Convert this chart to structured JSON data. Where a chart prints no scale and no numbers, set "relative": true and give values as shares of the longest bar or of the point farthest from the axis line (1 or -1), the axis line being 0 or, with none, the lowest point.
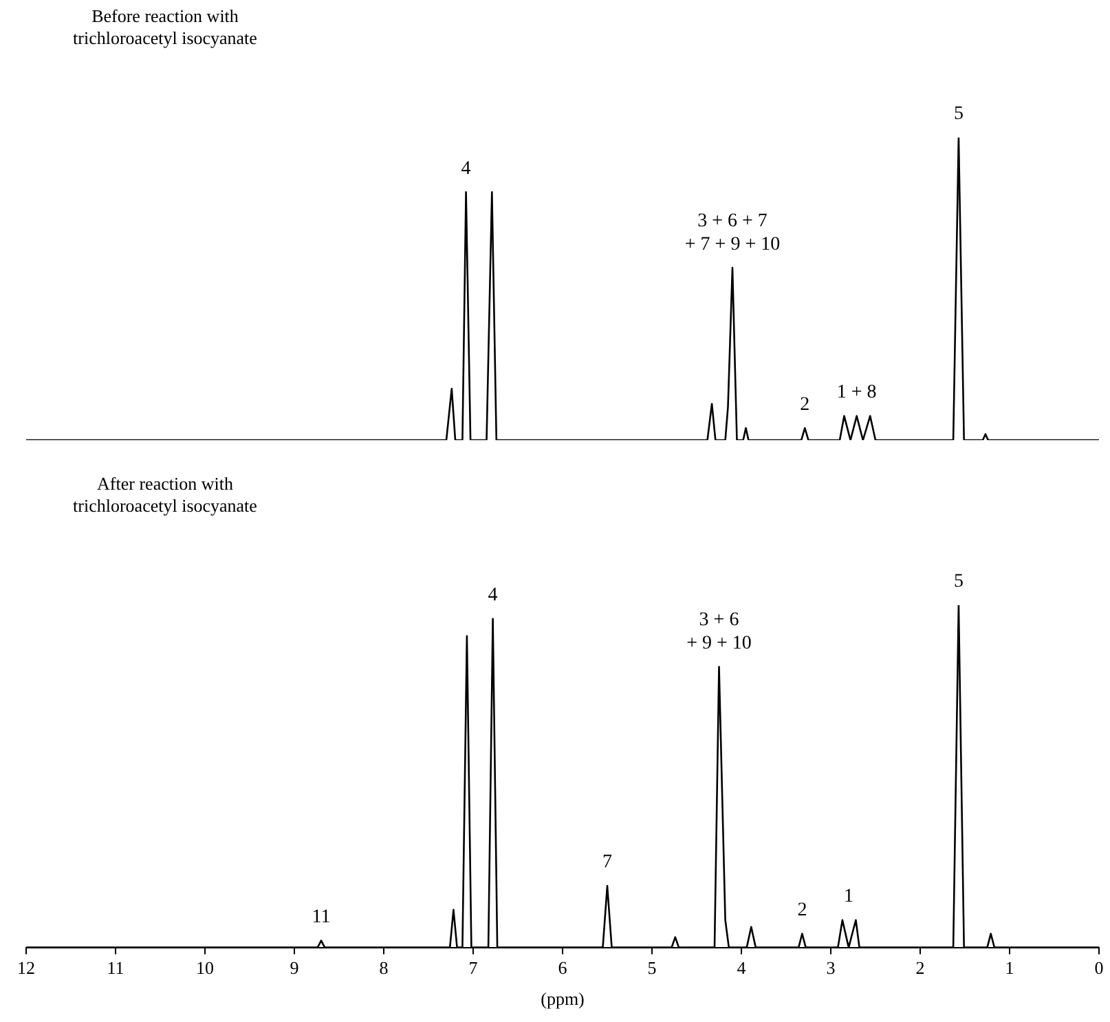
{
  "chart_data": [
    {
      "type": "line",
      "title": "Before reaction with\ntrichloroacetyl isocyanate",
      "relative": true,
      "xlim": [
        12,
        0
      ],
      "tick_labels": false,
      "series": [
        {
          "color": "#000000",
          "x": [
            12,
            7.3,
            7.24,
            7.2,
            7.12,
            7.08,
            7.03,
            6.85,
            6.79,
            6.74,
            4.38,
            4.33,
            4.29,
            4.18,
            4.15,
            4.1,
            4.05,
            3.98,
            3.95,
            3.92,
            3.33,
            3.29,
            3.25,
            2.9,
            2.85,
            2.78,
            2.71,
            2.64,
            2.56,
            2.5,
            1.63,
            1.57,
            1.51,
            1.3,
            1.27,
            1.24,
            0
          ],
          "values": [
            0,
            0,
            0.17,
            0,
            0,
            0.82,
            0,
            0,
            0.82,
            0,
            0,
            0.12,
            0,
            0,
            0.11,
            0.57,
            0,
            0,
            0.04,
            0,
            0,
            0.04,
            0,
            0,
            0.08,
            0,
            0.08,
            0,
            0.08,
            0,
            0,
            1,
            0,
            0,
            0.02,
            0,
            0
          ]
        }
      ],
      "annotations": [
        {
          "text": "4",
          "x": 7.08,
          "y": 0.82
        },
        {
          "text": "3 + 6 + 7\n+ 7 + 9 + 10",
          "x": 4.1,
          "y": 0.57
        },
        {
          "text": "2",
          "x": 3.29,
          "y": 0.04
        },
        {
          "text": "1 + 8",
          "x": 2.71,
          "y": 0.08
        },
        {
          "text": "5",
          "x": 1.57,
          "y": 1
        }
      ]
    },
    {
      "type": "line",
      "title": "After reaction with\ntrichloroacetyl isocyanate",
      "relative": true,
      "xlim": [
        12,
        0
      ],
      "xlabel": "(ppm)",
      "xticks": [
        12,
        11,
        10,
        9,
        8,
        7,
        6,
        5,
        4,
        3,
        2,
        1,
        0
      ],
      "series": [
        {
          "color": "#000000",
          "x": [
            12,
            8.74,
            8.7,
            8.66,
            7.26,
            7.22,
            7.18,
            7.12,
            7.07,
            7.02,
            6.83,
            6.78,
            6.73,
            5.55,
            5.5,
            5.45,
            4.78,
            4.74,
            4.7,
            4.3,
            4.25,
            4.18,
            4.14,
            3.94,
            3.89,
            3.84,
            3.36,
            3.32,
            3.28,
            2.92,
            2.87,
            2.8,
            2.72,
            2.68,
            1.63,
            1.57,
            1.51,
            1.25,
            1.21,
            1.17,
            0
          ],
          "values": [
            0,
            0,
            0.02,
            0,
            0,
            0.11,
            0,
            0,
            0.91,
            0,
            0,
            0.96,
            0,
            0,
            0.18,
            0,
            0,
            0.03,
            0,
            0,
            0.82,
            0.08,
            0,
            0,
            0.06,
            0,
            0,
            0.04,
            0,
            0,
            0.08,
            0,
            0.08,
            0,
            0,
            1,
            0,
            0,
            0.04,
            0,
            0
          ]
        }
      ],
      "annotations": [
        {
          "text": "11",
          "x": 8.7,
          "y": 0.02
        },
        {
          "text": "4",
          "x": 6.78,
          "y": 0.96
        },
        {
          "text": "7",
          "x": 5.5,
          "y": 0.18
        },
        {
          "text": "3 + 6\n+ 9 + 10",
          "x": 4.25,
          "y": 0.82
        },
        {
          "text": "2",
          "x": 3.32,
          "y": 0.04
        },
        {
          "text": "1",
          "x": 2.8,
          "y": 0.08
        },
        {
          "text": "5",
          "x": 1.57,
          "y": 1
        }
      ]
    }
  ]
}
